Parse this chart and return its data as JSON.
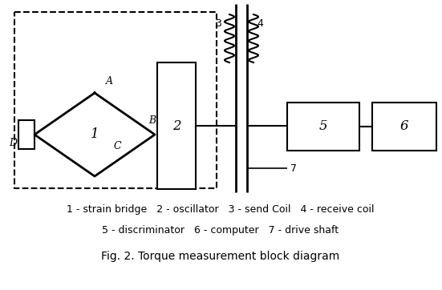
{
  "title": "Fig. 2. Torque measurement block diagram",
  "legend_line1": "1 - strain bridge   2 - oscillator   3 - send Coil   4 - receive coil",
  "legend_line2": "5 - discriminator   6 - computer   7 - drive shaft",
  "bg_color": "#ffffff",
  "line_color": "#000000",
  "figw": 5.51,
  "figh": 3.62,
  "dpi": 100
}
